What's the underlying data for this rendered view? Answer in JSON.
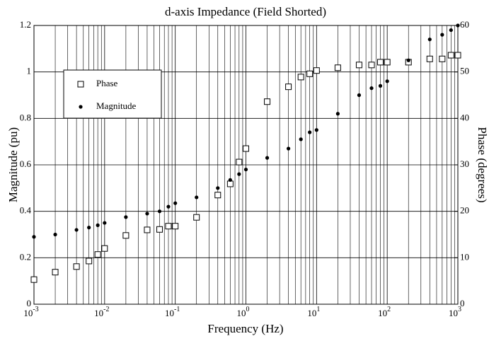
{
  "chart_data": {
    "type": "scatter",
    "title": "d-axis Impedance (Field Shorted)",
    "xlabel": "Frequency (Hz)",
    "ylabel": "Magnitude (pu)",
    "y2label": "Phase (degrees)",
    "xscale": "log",
    "minor_grid": true,
    "grid": true,
    "legend": "upper left",
    "x": [
      0.001,
      0.002,
      0.004,
      0.006,
      0.008,
      0.01,
      0.02,
      0.04,
      0.06,
      0.08,
      0.1,
      0.2,
      0.4,
      0.6,
      0.8,
      1,
      2,
      4,
      6,
      8,
      10,
      20,
      40,
      60,
      80,
      100,
      200,
      400,
      600,
      800,
      1000
    ],
    "series": [
      {
        "name": "Phase",
        "color": "#000000",
        "marker": "square",
        "axis": "y2",
        "values": [
          5.3,
          6.9,
          8.1,
          9.3,
          10.7,
          12.0,
          14.8,
          16.0,
          16.1,
          16.8,
          16.8,
          18.7,
          23.5,
          25.9,
          30.6,
          33.5,
          43.6,
          46.8,
          48.9,
          49.6,
          50.3,
          50.9,
          51.5,
          51.5,
          52.1,
          52.1,
          52.1,
          52.8,
          52.8,
          53.6,
          53.6
        ]
      },
      {
        "name": "Magnitude",
        "color": "#000000",
        "marker": "dot",
        "axis": "y",
        "values": [
          0.29,
          0.3,
          0.32,
          0.33,
          0.34,
          0.35,
          0.375,
          0.39,
          0.4,
          0.42,
          0.435,
          0.46,
          0.5,
          0.535,
          0.56,
          0.58,
          0.63,
          0.67,
          0.71,
          0.74,
          0.75,
          0.82,
          0.9,
          0.93,
          0.94,
          0.96,
          1.05,
          1.14,
          1.16,
          1.18,
          1.2
        ]
      }
    ],
    "xlim": [
      0.001,
      1000
    ],
    "xticks": [
      {
        "value": 0.001,
        "label": "10",
        "exponent": "-3"
      },
      {
        "value": 0.01,
        "label": "10",
        "exponent": "-2"
      },
      {
        "value": 0.1,
        "label": "10",
        "exponent": "-1"
      },
      {
        "value": 1,
        "label": "10",
        "exponent": "0"
      },
      {
        "value": 10,
        "label": "10",
        "exponent": "1"
      },
      {
        "value": 100,
        "label": "10",
        "exponent": "2"
      },
      {
        "value": 1000,
        "label": "10",
        "exponent": "3"
      }
    ],
    "ylim": [
      0,
      1.2
    ],
    "yticks": [
      0,
      0.2,
      0.4,
      0.6,
      0.8,
      1,
      1.2
    ],
    "y2lim": [
      0,
      60
    ],
    "y2ticks": [
      0,
      10,
      20,
      30,
      40,
      50,
      60
    ]
  }
}
